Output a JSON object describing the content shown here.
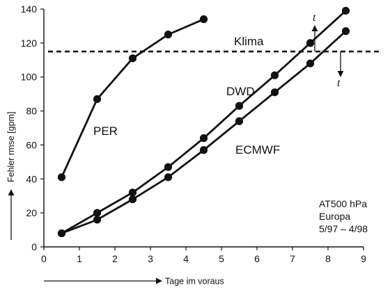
{
  "chart_data": {
    "type": "line",
    "xlabel": "Tage im voraus",
    "ylabel": "Fehler rmse [gpm]",
    "xlim": [
      0,
      9
    ],
    "ylim": [
      0,
      140
    ],
    "xticks": [
      "0",
      "1",
      "2",
      "3",
      "4",
      "5",
      "6",
      "7",
      "8",
      "9"
    ],
    "yticks": [
      "0",
      "20",
      "40",
      "60",
      "80",
      "100",
      "120",
      "140"
    ],
    "grid": false,
    "series": [
      {
        "name": "PER",
        "x": [
          0.5,
          1.5,
          2.5,
          3.5,
          4.5
        ],
        "y": [
          41,
          87,
          111,
          125,
          134
        ]
      },
      {
        "name": "DWD",
        "x": [
          0.5,
          1.5,
          2.5,
          3.5,
          4.5,
          5.5,
          6.5,
          7.5,
          8.5
        ],
        "y": [
          8,
          20,
          32,
          47,
          64,
          83,
          101,
          120,
          139
        ]
      },
      {
        "name": "ECMWF",
        "x": [
          0.5,
          1.5,
          2.5,
          3.5,
          4.5,
          5.5,
          6.5,
          7.5,
          8.5
        ],
        "y": [
          8,
          16,
          28,
          41,
          57,
          74,
          91,
          108,
          127
        ]
      }
    ],
    "reference_line": {
      "label": "Klima",
      "y": 115
    },
    "crossing_marker": "t",
    "annotation": [
      "AT500 hPa",
      "Europa",
      "5/97 – 4/98"
    ]
  }
}
